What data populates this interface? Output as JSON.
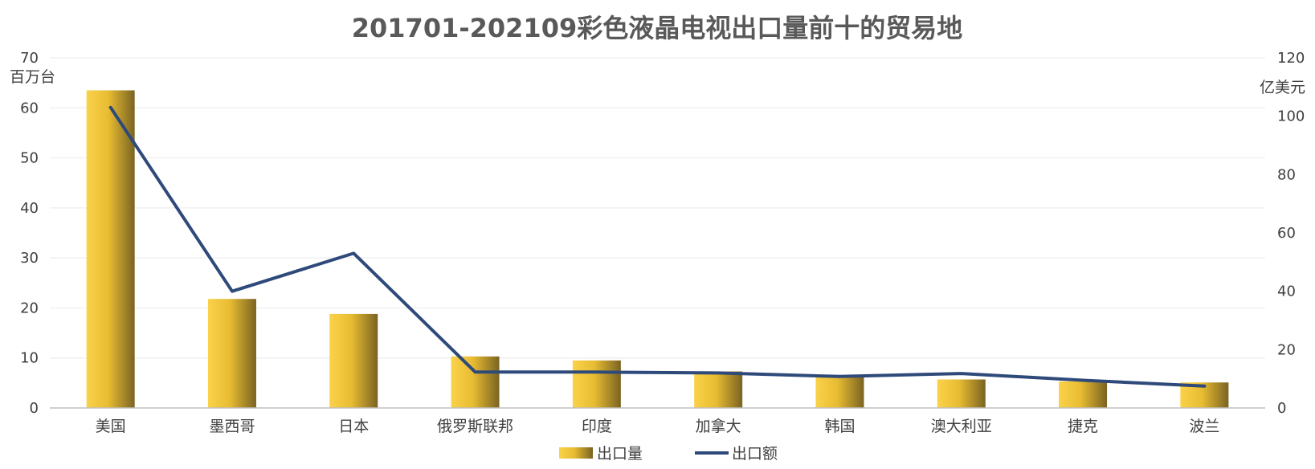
{
  "chart_data": {
    "type": "bar",
    "title": "201701-202109彩色液晶电视出口量前十的贸易地",
    "categories": [
      "美国",
      "墨西哥",
      "日本",
      "俄罗斯联邦",
      "印度",
      "加拿大",
      "韩国",
      "澳大利亚",
      "捷克",
      "波兰"
    ],
    "series": [
      {
        "name": "出口量",
        "type": "bar",
        "axis": "left",
        "values": [
          63.5,
          21.8,
          18.8,
          10.3,
          9.5,
          7.3,
          6.2,
          5.7,
          5.3,
          5.1
        ],
        "color": "#F0C030"
      },
      {
        "name": "出口额",
        "type": "line",
        "axis": "right",
        "values": [
          103,
          40,
          53,
          12.3,
          12.3,
          12,
          10.8,
          11.8,
          9.5,
          7.5
        ],
        "color": "#2E4A7A"
      }
    ],
    "y_left": {
      "unit": "百万台",
      "min": 0,
      "max": 70,
      "ticks": [
        0,
        10,
        20,
        30,
        40,
        50,
        60,
        70
      ]
    },
    "y_right": {
      "unit": "亿美元",
      "min": 0,
      "max": 120,
      "ticks": [
        0,
        20,
        40,
        60,
        80,
        100,
        120
      ]
    },
    "grid": true,
    "legend_position": "bottom-center"
  }
}
